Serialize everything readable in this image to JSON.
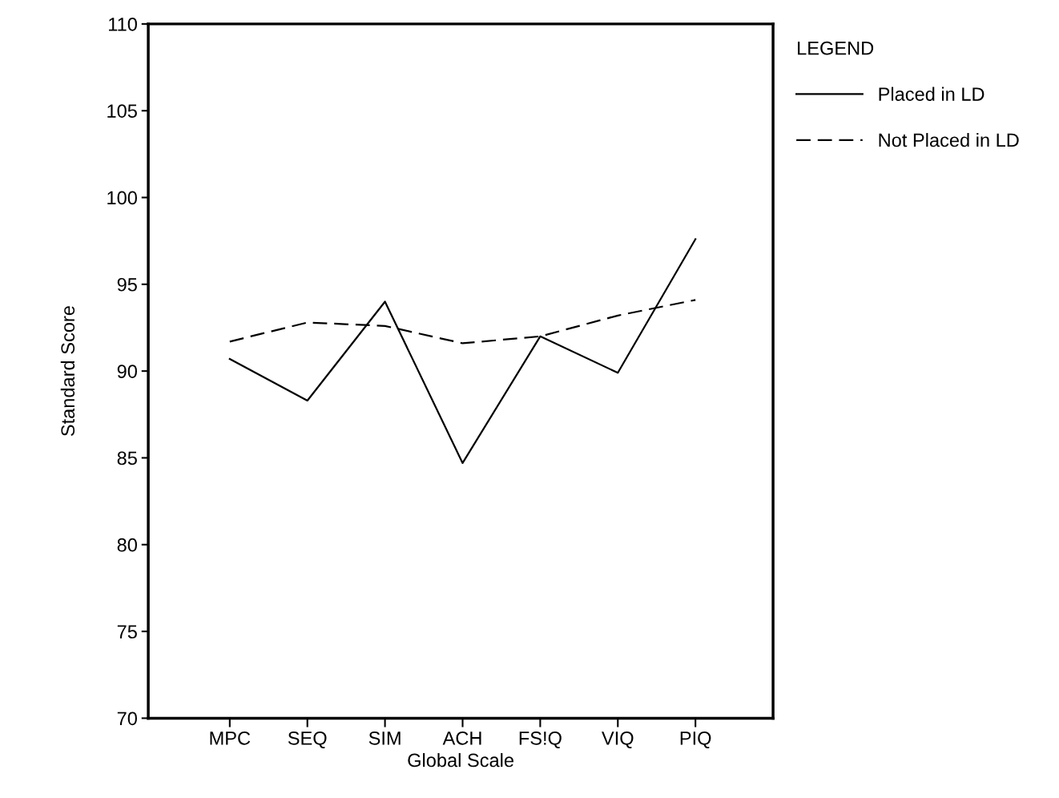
{
  "chart_data": {
    "type": "line",
    "xlabel": "Global Scale",
    "ylabel": "Standard Score",
    "legend_title": "LEGEND",
    "legend": "top right",
    "categories": [
      "MPC",
      "SEQ",
      "SIM",
      "ACH",
      "FS!Q",
      "VIQ",
      "PIQ"
    ],
    "series": [
      {
        "name": "Placed in LD",
        "color": "#000000",
        "line_style": "solid",
        "values": [
          90.7,
          88.3,
          94.0,
          84.7,
          92.0,
          89.9,
          97.6
        ]
      },
      {
        "name": "Not Placed in LD",
        "color": "#000000",
        "line_style": "dashed",
        "values": [
          91.7,
          92.8,
          92.6,
          91.6,
          92.0,
          93.2,
          94.1
        ]
      }
    ],
    "ylim": [
      70,
      110
    ],
    "yticks": [
      70,
      75,
      80,
      85,
      90,
      95,
      100,
      105,
      110
    ],
    "grid": false,
    "marker": "none"
  }
}
